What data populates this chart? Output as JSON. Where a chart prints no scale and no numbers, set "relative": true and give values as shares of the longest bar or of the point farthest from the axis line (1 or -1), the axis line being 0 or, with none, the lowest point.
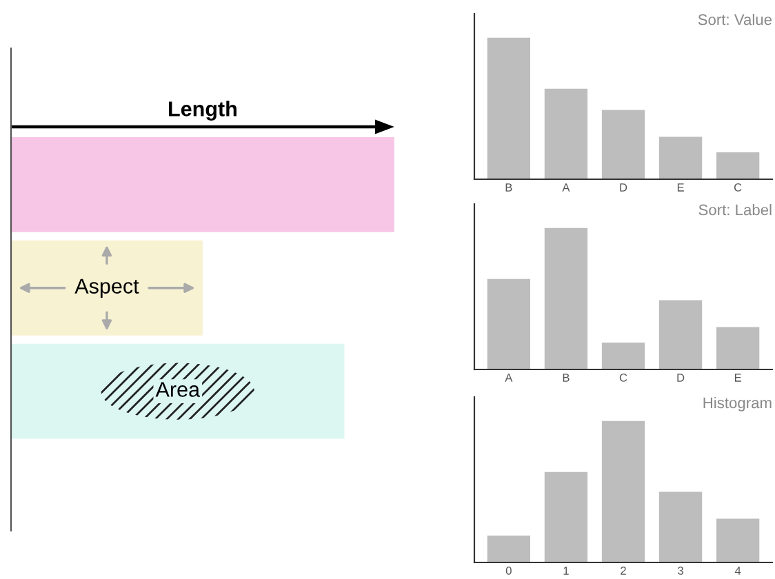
{
  "chart_data": [
    {
      "type": "bar",
      "orientation": "horizontal",
      "relative": true,
      "categories": [
        null,
        null,
        null
      ],
      "values": [
        1,
        0.5,
        0.87
      ],
      "colors": [
        "#f7c6e6",
        "#f7f2d2",
        "#dcf7f2"
      ],
      "annotations": [
        "Length",
        "Aspect",
        "Area"
      ]
    },
    {
      "type": "bar",
      "relative": true,
      "title": "Sort: Value",
      "categories": [
        "B",
        "A",
        "D",
        "E",
        "C"
      ],
      "values": [
        1,
        0.64,
        0.49,
        0.3,
        0.19
      ],
      "color": "#bdbdbd"
    },
    {
      "type": "bar",
      "relative": true,
      "title": "Sort: Label",
      "categories": [
        "A",
        "B",
        "C",
        "D",
        "E"
      ],
      "values": [
        0.64,
        1,
        0.19,
        0.49,
        0.3
      ],
      "color": "#bdbdbd"
    },
    {
      "type": "bar",
      "relative": true,
      "title": "Histogram",
      "categories": [
        "0",
        "1",
        "2",
        "3",
        "4"
      ],
      "values": [
        0.19,
        0.64,
        1,
        0.5,
        0.31
      ],
      "color": "#bdbdbd"
    }
  ]
}
